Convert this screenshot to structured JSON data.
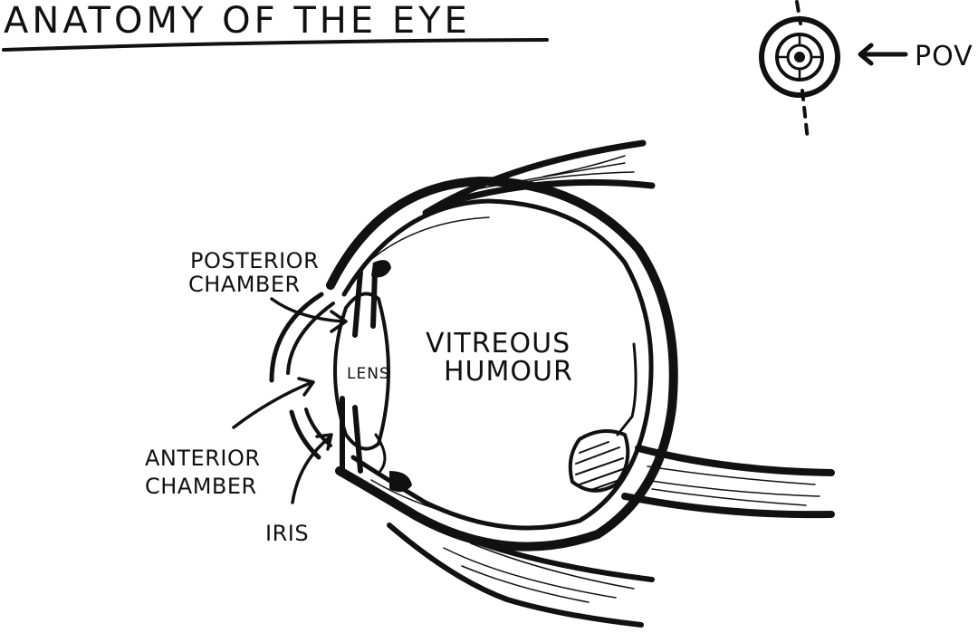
{
  "title": "ANATOMY OF THE EYE",
  "pov": {
    "label": "POV",
    "icon": "eye-front-icon"
  },
  "labels": {
    "posterior_chamber": [
      "POSTERIOR",
      "CHAMBER"
    ],
    "anterior_chamber": [
      "ANTERIOR",
      "CHAMBER"
    ],
    "iris": "IRIS",
    "lens": "LENS",
    "vitreous_humour": [
      "VITREOUS",
      "HUMOUR"
    ]
  },
  "colors": {
    "ink": "#111111",
    "paper": "#ffffff"
  }
}
